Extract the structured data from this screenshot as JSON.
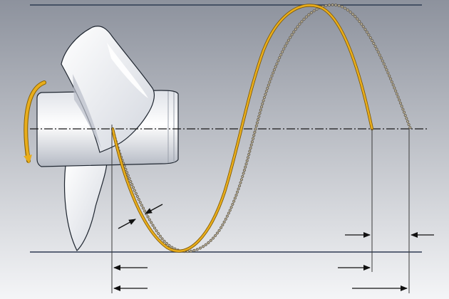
{
  "colors": {
    "background_top": "#8d929d",
    "background_bottom": "#f4f5f7",
    "guide_line": "#2e3b52",
    "helix": "#e8ad1c",
    "helix_dark": "#7a5400",
    "slip_beads": "#9b8f72",
    "blade": "#f3f4f7",
    "blade_shadow": "#b9bec9",
    "rotation_arrow": "#e8ad1c",
    "arrow": "#111111"
  },
  "icons": {
    "propeller": "propeller-icon",
    "rotation": "curved-arrow-icon"
  }
}
